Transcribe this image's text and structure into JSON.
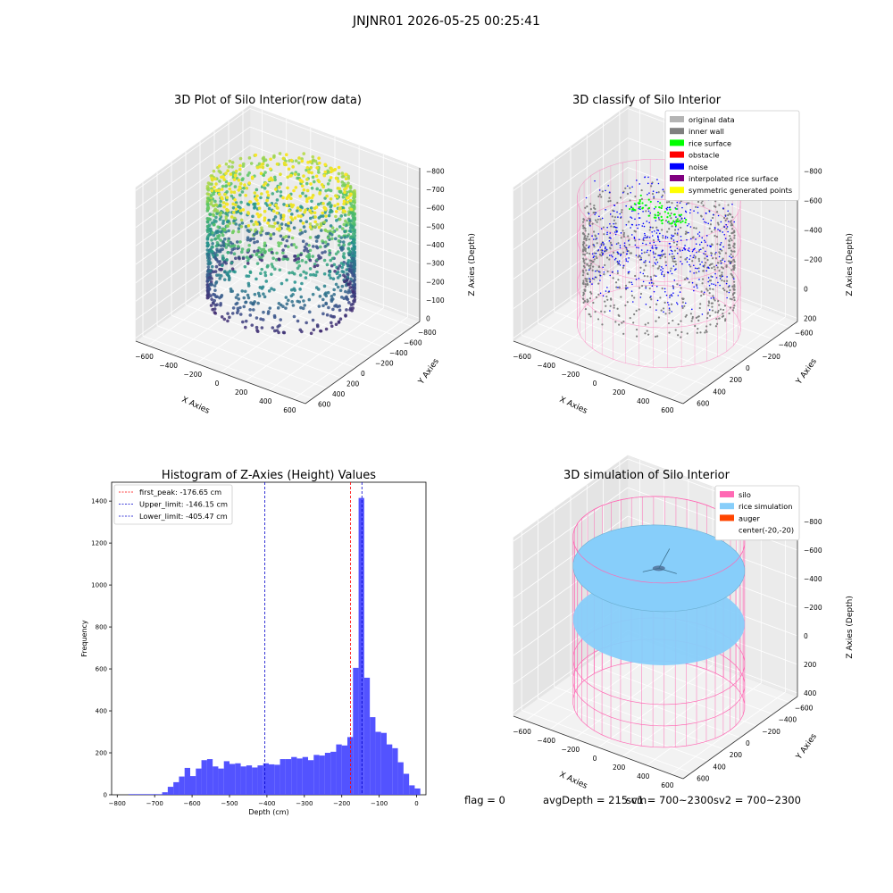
{
  "suptitle": "JNJNR01 2026-05-25 00:25:41",
  "footer": {
    "flag": "flag = 0",
    "avg": "avgDepth = 215 cm",
    "sv1": "sv1 = 700~2300",
    "sv2": "sv2 = 700~2300"
  },
  "colors": {
    "hist_bar": "#4444ff",
    "first_peak_line": "#ff0000",
    "limit_line": "#0000cc",
    "silo_wire": "#ff69b4",
    "rice_sim": "#87cefa",
    "auger": "#ff4500",
    "inner_wall": "#808080",
    "rice_surface": "#00ff00",
    "obstacle": "#ff0000",
    "noise": "#0000ff",
    "interp": "#800080",
    "symmetric": "#ffff00",
    "original": "#b4b4b4"
  },
  "chart_data": [
    {
      "type": "scatter",
      "title": "3D Plot of Silo Interior(row data)",
      "xlabel": "X Axies",
      "ylabel": "Y Axies",
      "zlabel": "Z Axies (Depth)",
      "xticks": [
        "−600",
        "−400",
        "−200",
        "0",
        "200",
        "400",
        "600"
      ],
      "yticks": [
        "600",
        "400",
        "200",
        "0",
        "−200",
        "−400",
        "−600",
        "−800"
      ],
      "zticks": [
        "0",
        "−100",
        "−200",
        "−300",
        "−400",
        "−500",
        "−600",
        "−700",
        "−800"
      ],
      "xlim": [
        -700,
        650
      ],
      "ylim": [
        -800,
        650
      ],
      "zlim": [
        -800,
        0
      ],
      "colormap": "viridis"
    },
    {
      "type": "scatter",
      "title": "3D classify of Silo Interior",
      "xlabel": "X Axies",
      "ylabel": "Y Axies",
      "zlabel": "Z Axies (Depth)",
      "xticks": [
        "−600",
        "−400",
        "−200",
        "0",
        "200",
        "400",
        "600"
      ],
      "yticks": [
        "600",
        "400",
        "200",
        "0",
        "−200",
        "−400",
        "−600"
      ],
      "zticks": [
        "200",
        "0",
        "−200",
        "−400",
        "−600",
        "−800"
      ],
      "xlim": [
        -700,
        650
      ],
      "ylim": [
        -650,
        650
      ],
      "zlim": [
        -900,
        250
      ],
      "legend": {
        "placement": "upper-right",
        "items": [
          {
            "label": "original data",
            "color": "#b4b4b4"
          },
          {
            "label": "inner wall",
            "color": "#808080"
          },
          {
            "label": "rice surface",
            "color": "#00ff00"
          },
          {
            "label": "obstacle",
            "color": "#ff0000"
          },
          {
            "label": "noise",
            "color": "#0000ff"
          },
          {
            "label": "interpolated rice surface",
            "color": "#800080"
          },
          {
            "label": "symmetric generated points",
            "color": "#ffff00"
          }
        ]
      }
    },
    {
      "type": "bar",
      "title": "Histogram of Z-Axies (Height) Values",
      "xlabel": "Depth (cm)",
      "ylabel": "Frequency",
      "xlim": [
        -815,
        25
      ],
      "ylim": [
        0,
        1490
      ],
      "xticks": [
        -800,
        -700,
        -600,
        -500,
        -400,
        -300,
        -200,
        -100,
        0
      ],
      "yticks": [
        0,
        200,
        400,
        600,
        800,
        1000,
        1200,
        1400
      ],
      "bin_width": 15,
      "bin_start": -770,
      "values": [
        3,
        3,
        3,
        3,
        3,
        3,
        12,
        38,
        60,
        87,
        128,
        89,
        125,
        165,
        170,
        135,
        125,
        160,
        147,
        150,
        135,
        140,
        130,
        140,
        150,
        145,
        143,
        170,
        170,
        180,
        173,
        180,
        165,
        190,
        187,
        200,
        205,
        240,
        235,
        275,
        605,
        1415,
        558,
        370,
        300,
        295,
        240,
        222,
        155,
        100,
        45,
        30
      ],
      "lines": [
        {
          "label": "first_peak: -176.65 cm",
          "x": -176.65,
          "color": "#ff0000"
        },
        {
          "label": "Upper_limit: -146.15 cm",
          "x": -146.15,
          "color": "#0000cc"
        },
        {
          "label": "Lower_limit: -405.47 cm",
          "x": -405.47,
          "color": "#0000cc"
        }
      ]
    },
    {
      "type": "scatter",
      "title": "3D simulation of Silo Interior",
      "xlabel": "X Axies",
      "ylabel": "Y Axies",
      "zlabel": "Z Axies (Depth)",
      "xticks": [
        "−600",
        "−400",
        "−200",
        "0",
        "200",
        "400",
        "600"
      ],
      "yticks": [
        "600",
        "400",
        "200",
        "0",
        "−200",
        "−400",
        "−600"
      ],
      "zticks": [
        "400",
        "200",
        "0",
        "−200",
        "−400",
        "−600",
        "−800"
      ],
      "xlim": [
        -700,
        650
      ],
      "ylim": [
        -650,
        650
      ],
      "zlim": [
        -900,
        450
      ],
      "legend": {
        "placement": "upper-right",
        "items": [
          {
            "label": "silo",
            "color": "#ff69b4"
          },
          {
            "label": "rice simulation",
            "color": "#87cefa"
          },
          {
            "label": "auger",
            "color": "#ff4500"
          },
          {
            "label": "center(-20,-20)",
            "color": ""
          }
        ]
      }
    }
  ]
}
